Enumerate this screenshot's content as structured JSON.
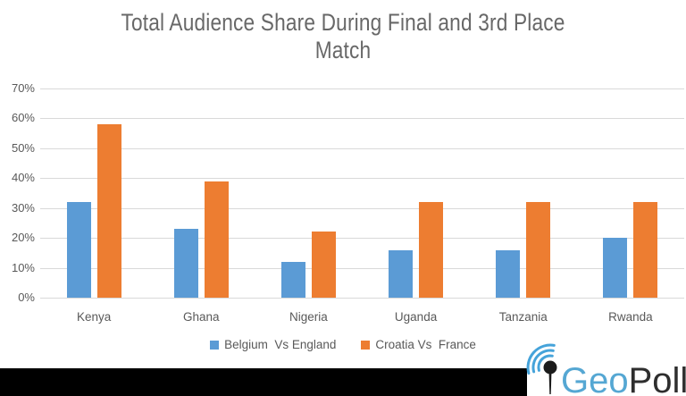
{
  "title_lines": [
    "Total Audience Share During Final and 3rd Place",
    "Match"
  ],
  "chart_data": {
    "type": "bar",
    "title": "Total Audience Share During Final and 3rd Place Match",
    "categories": [
      "Kenya",
      "Ghana",
      "Nigeria",
      "Uganda",
      "Tanzania",
      "Rwanda"
    ],
    "series": [
      {
        "name": "Belgium  Vs England",
        "color": "#5B9BD5",
        "values": [
          32,
          23,
          12,
          16,
          16,
          20
        ]
      },
      {
        "name": "Croatia Vs  France",
        "color": "#ED7D31",
        "values": [
          58,
          39,
          22,
          32,
          32,
          32
        ]
      }
    ],
    "xlabel": "",
    "ylabel": "",
    "ylim": [
      0,
      70
    ],
    "ytick_step": 10,
    "ytick_labels": [
      "0%",
      "10%",
      "20%",
      "30%",
      "40%",
      "50%",
      "60%",
      "70%"
    ],
    "grid": true,
    "legend_position": "bottom",
    "value_format": "percent"
  },
  "colors": {
    "title_text": "#686868",
    "axis_text": "#595959",
    "gridline": "#D9D9D9",
    "bottom_bar": "#000000"
  },
  "logo": {
    "icon": "antenna-signal-icon",
    "text_geo": "Geo",
    "text_poll": "Poll",
    "geo_color": "#55A7D3",
    "poll_color": "#2E2E2E",
    "signal_color": "#45A3DA",
    "antenna_color": "#1B1B1B"
  }
}
